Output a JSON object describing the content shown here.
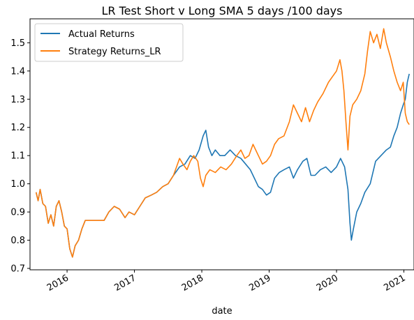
{
  "chart_data": {
    "type": "line",
    "title": "LR Test Short v Long SMA 5 days /100 days",
    "xlabel": "date",
    "ylabel": "",
    "xlim": [
      2015.45,
      2021.15
    ],
    "ylim": [
      0.695,
      1.585
    ],
    "x_ticks": [
      {
        "value": 2016,
        "label": "2016"
      },
      {
        "value": 2017,
        "label": "2017"
      },
      {
        "value": 2018,
        "label": "2018"
      },
      {
        "value": 2019,
        "label": "2019"
      },
      {
        "value": 2020,
        "label": "2020"
      },
      {
        "value": 2021,
        "label": "2021"
      }
    ],
    "y_ticks": [
      {
        "value": 0.7,
        "label": "0.7"
      },
      {
        "value": 0.8,
        "label": "0.8"
      },
      {
        "value": 0.9,
        "label": "0.9"
      },
      {
        "value": 1.0,
        "label": "1.0"
      },
      {
        "value": 1.1,
        "label": "1.1"
      },
      {
        "value": 1.2,
        "label": "1.2"
      },
      {
        "value": 1.3,
        "label": "1.3"
      },
      {
        "value": 1.4,
        "label": "1.4"
      },
      {
        "value": 1.5,
        "label": "1.5"
      }
    ],
    "grid": false,
    "legend_position": "top-left",
    "series": [
      {
        "name": "Actual Returns",
        "color": "#1f77b4",
        "points": [
          [
            2015.54,
            0.97
          ],
          [
            2015.57,
            0.94
          ],
          [
            2015.6,
            0.98
          ],
          [
            2015.64,
            0.93
          ],
          [
            2015.68,
            0.92
          ],
          [
            2015.72,
            0.86
          ],
          [
            2015.76,
            0.89
          ],
          [
            2015.8,
            0.85
          ],
          [
            2015.84,
            0.92
          ],
          [
            2015.88,
            0.94
          ],
          [
            2015.92,
            0.9
          ],
          [
            2015.96,
            0.85
          ],
          [
            2016.0,
            0.84
          ],
          [
            2016.04,
            0.77
          ],
          [
            2016.08,
            0.74
          ],
          [
            2016.12,
            0.78
          ],
          [
            2016.17,
            0.8
          ],
          [
            2016.22,
            0.84
          ],
          [
            2016.27,
            0.87
          ],
          [
            2016.35,
            0.87
          ],
          [
            2016.45,
            0.87
          ],
          [
            2016.55,
            0.87
          ],
          [
            2016.62,
            0.9
          ],
          [
            2016.7,
            0.92
          ],
          [
            2016.78,
            0.91
          ],
          [
            2016.86,
            0.88
          ],
          [
            2016.92,
            0.9
          ],
          [
            2017.0,
            0.89
          ],
          [
            2017.08,
            0.92
          ],
          [
            2017.16,
            0.95
          ],
          [
            2017.25,
            0.96
          ],
          [
            2017.33,
            0.97
          ],
          [
            2017.42,
            0.99
          ],
          [
            2017.5,
            1.0
          ],
          [
            2017.58,
            1.03
          ],
          [
            2017.67,
            1.06
          ],
          [
            2017.75,
            1.07
          ],
          [
            2017.83,
            1.1
          ],
          [
            2017.9,
            1.09
          ],
          [
            2017.96,
            1.12
          ],
          [
            2018.02,
            1.17
          ],
          [
            2018.06,
            1.19
          ],
          [
            2018.1,
            1.13
          ],
          [
            2018.15,
            1.1
          ],
          [
            2018.2,
            1.12
          ],
          [
            2018.27,
            1.1
          ],
          [
            2018.34,
            1.1
          ],
          [
            2018.42,
            1.12
          ],
          [
            2018.5,
            1.1
          ],
          [
            2018.58,
            1.09
          ],
          [
            2018.65,
            1.07
          ],
          [
            2018.72,
            1.05
          ],
          [
            2018.78,
            1.02
          ],
          [
            2018.84,
            0.99
          ],
          [
            2018.9,
            0.98
          ],
          [
            2018.96,
            0.96
          ],
          [
            2019.02,
            0.97
          ],
          [
            2019.08,
            1.02
          ],
          [
            2019.15,
            1.04
          ],
          [
            2019.22,
            1.05
          ],
          [
            2019.3,
            1.06
          ],
          [
            2019.36,
            1.02
          ],
          [
            2019.42,
            1.05
          ],
          [
            2019.5,
            1.08
          ],
          [
            2019.56,
            1.09
          ],
          [
            2019.62,
            1.03
          ],
          [
            2019.68,
            1.03
          ],
          [
            2019.76,
            1.05
          ],
          [
            2019.84,
            1.06
          ],
          [
            2019.92,
            1.04
          ],
          [
            2020.0,
            1.06
          ],
          [
            2020.06,
            1.09
          ],
          [
            2020.12,
            1.06
          ],
          [
            2020.17,
            0.98
          ],
          [
            2020.2,
            0.86
          ],
          [
            2020.22,
            0.8
          ],
          [
            2020.25,
            0.84
          ],
          [
            2020.3,
            0.9
          ],
          [
            2020.36,
            0.93
          ],
          [
            2020.42,
            0.97
          ],
          [
            2020.5,
            1.0
          ],
          [
            2020.58,
            1.08
          ],
          [
            2020.66,
            1.1
          ],
          [
            2020.74,
            1.12
          ],
          [
            2020.8,
            1.13
          ],
          [
            2020.85,
            1.17
          ],
          [
            2020.9,
            1.2
          ],
          [
            2020.95,
            1.25
          ],
          [
            2020.99,
            1.28
          ],
          [
            2021.02,
            1.3
          ],
          [
            2021.05,
            1.36
          ],
          [
            2021.08,
            1.39
          ]
        ]
      },
      {
        "name": "Strategy Returns_LR",
        "color": "#ff7f0e",
        "points": [
          [
            2015.54,
            0.97
          ],
          [
            2015.57,
            0.94
          ],
          [
            2015.6,
            0.98
          ],
          [
            2015.64,
            0.93
          ],
          [
            2015.68,
            0.92
          ],
          [
            2015.72,
            0.86
          ],
          [
            2015.76,
            0.89
          ],
          [
            2015.8,
            0.85
          ],
          [
            2015.84,
            0.92
          ],
          [
            2015.88,
            0.94
          ],
          [
            2015.92,
            0.9
          ],
          [
            2015.96,
            0.85
          ],
          [
            2016.0,
            0.84
          ],
          [
            2016.04,
            0.77
          ],
          [
            2016.08,
            0.74
          ],
          [
            2016.12,
            0.78
          ],
          [
            2016.17,
            0.8
          ],
          [
            2016.22,
            0.84
          ],
          [
            2016.27,
            0.87
          ],
          [
            2016.35,
            0.87
          ],
          [
            2016.45,
            0.87
          ],
          [
            2016.55,
            0.87
          ],
          [
            2016.62,
            0.9
          ],
          [
            2016.7,
            0.92
          ],
          [
            2016.78,
            0.91
          ],
          [
            2016.86,
            0.88
          ],
          [
            2016.92,
            0.9
          ],
          [
            2017.0,
            0.89
          ],
          [
            2017.08,
            0.92
          ],
          [
            2017.16,
            0.95
          ],
          [
            2017.25,
            0.96
          ],
          [
            2017.33,
            0.97
          ],
          [
            2017.42,
            0.99
          ],
          [
            2017.5,
            1.0
          ],
          [
            2017.58,
            1.03
          ],
          [
            2017.67,
            1.09
          ],
          [
            2017.72,
            1.07
          ],
          [
            2017.78,
            1.05
          ],
          [
            2017.83,
            1.08
          ],
          [
            2017.88,
            1.1
          ],
          [
            2017.94,
            1.08
          ],
          [
            2017.98,
            1.02
          ],
          [
            2018.02,
            0.99
          ],
          [
            2018.06,
            1.03
          ],
          [
            2018.12,
            1.05
          ],
          [
            2018.2,
            1.04
          ],
          [
            2018.28,
            1.06
          ],
          [
            2018.36,
            1.05
          ],
          [
            2018.44,
            1.07
          ],
          [
            2018.52,
            1.1
          ],
          [
            2018.58,
            1.12
          ],
          [
            2018.64,
            1.09
          ],
          [
            2018.7,
            1.1
          ],
          [
            2018.76,
            1.14
          ],
          [
            2018.84,
            1.1
          ],
          [
            2018.9,
            1.07
          ],
          [
            2018.96,
            1.08
          ],
          [
            2019.02,
            1.1
          ],
          [
            2019.08,
            1.14
          ],
          [
            2019.14,
            1.16
          ],
          [
            2019.22,
            1.17
          ],
          [
            2019.3,
            1.22
          ],
          [
            2019.36,
            1.28
          ],
          [
            2019.42,
            1.25
          ],
          [
            2019.48,
            1.22
          ],
          [
            2019.54,
            1.27
          ],
          [
            2019.6,
            1.22
          ],
          [
            2019.66,
            1.26
          ],
          [
            2019.72,
            1.29
          ],
          [
            2019.8,
            1.32
          ],
          [
            2019.88,
            1.36
          ],
          [
            2019.94,
            1.38
          ],
          [
            2020.0,
            1.4
          ],
          [
            2020.05,
            1.44
          ],
          [
            2020.08,
            1.4
          ],
          [
            2020.11,
            1.33
          ],
          [
            2020.14,
            1.22
          ],
          [
            2020.17,
            1.12
          ],
          [
            2020.2,
            1.24
          ],
          [
            2020.24,
            1.28
          ],
          [
            2020.3,
            1.3
          ],
          [
            2020.36,
            1.33
          ],
          [
            2020.42,
            1.39
          ],
          [
            2020.46,
            1.47
          ],
          [
            2020.5,
            1.54
          ],
          [
            2020.55,
            1.5
          ],
          [
            2020.6,
            1.53
          ],
          [
            2020.65,
            1.48
          ],
          [
            2020.7,
            1.55
          ],
          [
            2020.74,
            1.5
          ],
          [
            2020.8,
            1.45
          ],
          [
            2020.85,
            1.4
          ],
          [
            2020.9,
            1.36
          ],
          [
            2020.95,
            1.33
          ],
          [
            2020.99,
            1.36
          ],
          [
            2021.02,
            1.25
          ],
          [
            2021.05,
            1.22
          ],
          [
            2021.08,
            1.21
          ]
        ]
      }
    ]
  }
}
